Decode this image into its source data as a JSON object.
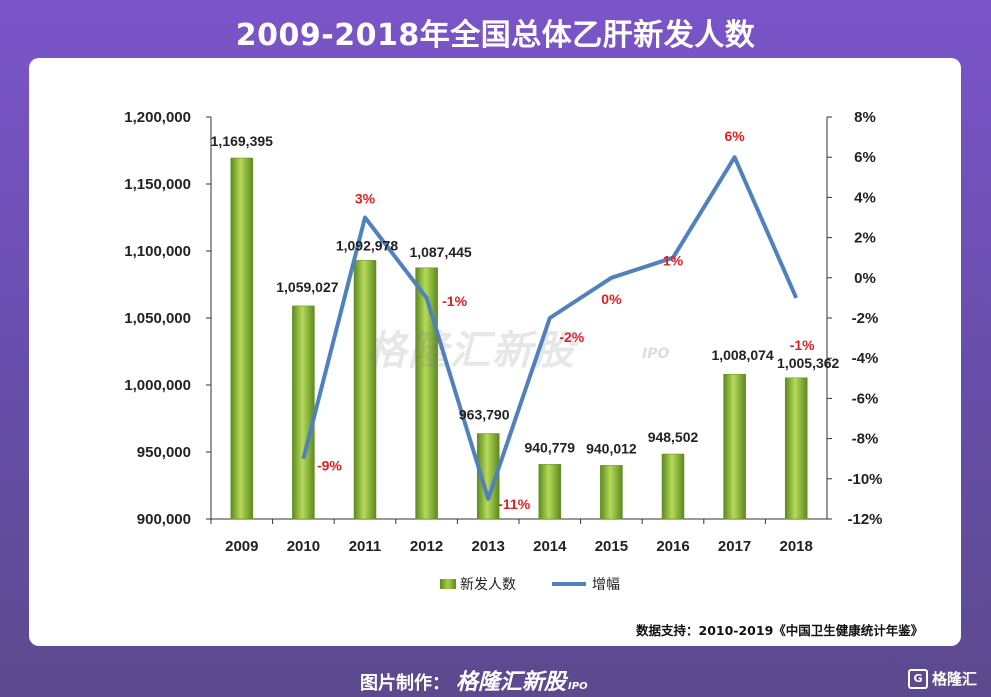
{
  "title": "2009-2018年全国总体乙肝新发人数",
  "watermark": {
    "brand": "格隆汇新股",
    "sub": "IPO"
  },
  "footer": {
    "credit": "图片制作：",
    "brand": "格隆汇新股",
    "ipo": "IPO",
    "corner": "格隆汇",
    "corner_icon": "G"
  },
  "source": "数据支持：2010-2019《中国卫生健康统计年鉴》",
  "legend": {
    "bar": "新发人数",
    "line": "增幅"
  },
  "colors": {
    "bar": "#8dbb34",
    "bar_dark": "#5c8a1e",
    "line": "#4f81bd",
    "pct_label": "#e02020"
  },
  "chart_data": {
    "type": "bar",
    "categories": [
      "2009",
      "2010",
      "2011",
      "2012",
      "2013",
      "2014",
      "2015",
      "2016",
      "2017",
      "2018"
    ],
    "series": [
      {
        "name": "新发人数",
        "type": "bar",
        "axis": "left",
        "values": [
          1169395,
          1059027,
          1092978,
          1087445,
          963790,
          940779,
          940012,
          948502,
          1008074,
          1005362
        ],
        "labels": [
          "1,169,395",
          "1,059,027",
          "1,092,978",
          "1,087,445",
          "963,790",
          "940,779",
          "940,012",
          "948,502",
          "1,008,074",
          "1,005,362"
        ]
      },
      {
        "name": "增幅",
        "type": "line",
        "axis": "right",
        "values": [
          null,
          -9,
          3,
          -1,
          -11,
          -2,
          0,
          1,
          6,
          -1
        ],
        "labels": [
          "",
          "-9%",
          "3%",
          "-1%",
          "-11%",
          "-2%",
          "0%",
          "1%",
          "6%",
          "-1%"
        ]
      }
    ],
    "y_left": {
      "min": 900000,
      "max": 1200000,
      "ticks": [
        "900,000",
        "950,000",
        "1,000,000",
        "1,050,000",
        "1,100,000",
        "1,150,000",
        "1,200,000"
      ]
    },
    "y_right": {
      "min": -12,
      "max": 8,
      "ticks": [
        "-12%",
        "-10%",
        "-8%",
        "-6%",
        "-4%",
        "-2%",
        "0%",
        "2%",
        "4%",
        "6%",
        "8%"
      ]
    },
    "legend_position": "bottom-center",
    "grid": false
  }
}
